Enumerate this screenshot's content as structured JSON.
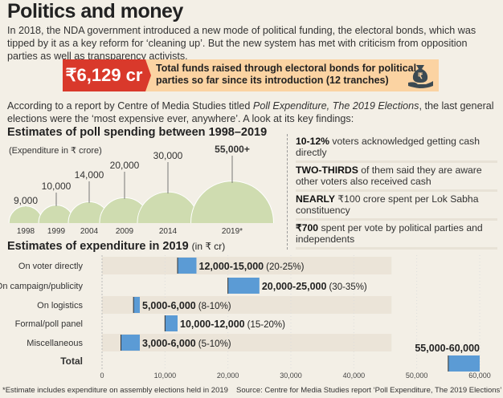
{
  "title": "Politics and money",
  "intro": "In 2018, the NDA government introduced a new mode of political funding, the electoral bonds, which was tipped by it as a key reform for ‘cleaning up’. But the new system has met with criticism from opposition parties as well as transparency activists.",
  "highlight": {
    "value": "₹6,129 cr",
    "text": "Total funds raised through electoral bonds for political parties so far since its introduction (12 tranches)",
    "icon": "money-bag-hand-icon"
  },
  "report_prefix": "According to a report by Centre of Media Studies titled ",
  "report_title": "Poll Expenditure, The 2019 Elections",
  "report_suffix": ", the last general elections were the ‘most expensive ever, anywhere’. A look at its key findings:",
  "findings": [
    {
      "bold": "10-12%",
      "text": " voters acknowledged getting cash directly"
    },
    {
      "bold": "TWO-THIRDS",
      "text": " of them said they are aware other voters also received cash"
    },
    {
      "bold": "NEARLY",
      "text": " ₹100 crore spent per Lok Sabha constituency"
    },
    {
      "bold": "₹700",
      "text": " spent per vote by political parties and independents"
    }
  ],
  "footnote": "*Estimate includes expenditure on assembly elections held in 2019",
  "source": "Source: Centre for Media Studies report ‘Poll Expenditure, The 2019 Elections’",
  "colors": {
    "bubble": "#cfdcb0",
    "bar": "#5b9bd5",
    "band": "#ebe4d8",
    "accent": "#d9392b"
  },
  "chart_data": [
    {
      "type": "bubble",
      "title": "Estimates of poll spending between 1998–2019",
      "ylabel": "(Expenditure in ₹ crore)",
      "categories": [
        "1998",
        "1999",
        "2004",
        "2009",
        "2014",
        "2019*"
      ],
      "values": [
        9000,
        10000,
        14000,
        20000,
        30000,
        55000
      ],
      "labels": [
        "9,000",
        "10,000",
        "14,000",
        "20,000",
        "30,000",
        "55,000+"
      ]
    },
    {
      "type": "bar",
      "subtype": "range",
      "title": "Estimates of expenditure in 2019",
      "unit": "(in ₹ cr)",
      "categories": [
        "On voter directly",
        "On campaign/publicity",
        "On logistics",
        "Formal/poll panel",
        "Miscellaneous",
        "Total"
      ],
      "ranges": [
        [
          12000,
          15000
        ],
        [
          20000,
          25000
        ],
        [
          5000,
          6000
        ],
        [
          10000,
          12000
        ],
        [
          3000,
          6000
        ],
        [
          55000,
          60000
        ]
      ],
      "range_labels": [
        "12,000-15,000",
        "20,000-25,000",
        "5,000-6,000",
        "10,000-12,000",
        "3,000-6,000",
        "55,000-60,000"
      ],
      "shares": [
        "(20-25%)",
        "(30-35%)",
        "(8-10%)",
        "(15-20%)",
        "(5-10%)",
        ""
      ],
      "xlim": [
        0,
        60000
      ],
      "xticks": [
        "0",
        "10,000",
        "20,000",
        "30,000",
        "40,000",
        "50,000",
        "60,000"
      ]
    }
  ]
}
